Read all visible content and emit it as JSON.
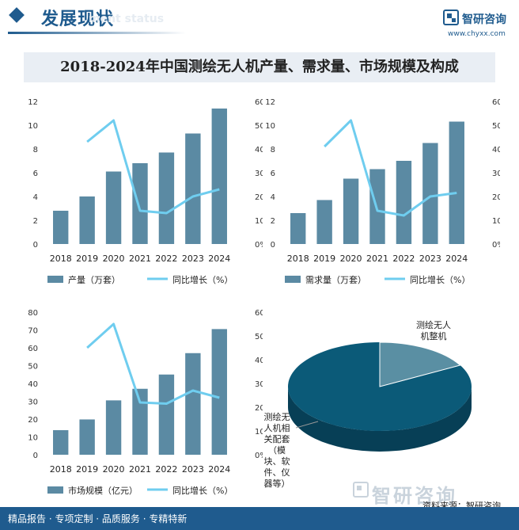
{
  "header": {
    "title": "发展现状",
    "subtitle": "ment status"
  },
  "logo": {
    "name": "智研咨询",
    "url": "www.chyxx.com"
  },
  "main_title": "2018-2024年中国测绘无人机产量、需求量、市场规模及构成",
  "watermark": "智研咨询",
  "source": "资料来源：智研咨询",
  "footer": "精品报告 · 专项定制 · 品质服务 · 专精特新",
  "colors": {
    "bar": "#5b8aa3",
    "line": "#6fcdef",
    "pie_dark": "#0b5a78",
    "pie_light": "#5a8fa3"
  },
  "chart_data": [
    {
      "type": "bar",
      "categories": [
        "2018",
        "2019",
        "2020",
        "2021",
        "2022",
        "2023",
        "2024"
      ],
      "series": [
        {
          "name": "产量（万套）",
          "type": "bar",
          "axis": "left",
          "values": [
            2.8,
            4.0,
            6.1,
            6.8,
            7.7,
            9.3,
            11.4
          ]
        },
        {
          "name": "同比增长（%）",
          "type": "line",
          "axis": "right",
          "values": [
            null,
            43,
            52,
            14,
            13,
            20,
            23
          ]
        }
      ],
      "yticks": [
        "0",
        "2",
        "4",
        "6",
        "8",
        "10",
        "12"
      ],
      "ylim": [
        0,
        12
      ],
      "y2ticks": [
        "0%",
        "10%",
        "20%",
        "30%",
        "40%",
        "50%",
        "60%"
      ],
      "y2lim": [
        0,
        60
      ]
    },
    {
      "type": "bar",
      "categories": [
        "2018",
        "2019",
        "2020",
        "2021",
        "2022",
        "2023",
        "2024"
      ],
      "series": [
        {
          "name": "需求量（万套）",
          "type": "bar",
          "axis": "left",
          "values": [
            2.6,
            3.7,
            5.5,
            6.3,
            7.0,
            8.5,
            10.3
          ]
        },
        {
          "name": "同比增长（%）",
          "type": "line",
          "axis": "right",
          "values": [
            null,
            41,
            52,
            14,
            12,
            20,
            21.5
          ]
        }
      ],
      "yticks": [
        "0",
        "2",
        "4",
        "6",
        "8",
        "10",
        "12"
      ],
      "ylim": [
        0,
        12
      ],
      "y2ticks": [
        "0%",
        "10%",
        "20%",
        "30%",
        "40%",
        "50%",
        "60%"
      ],
      "y2lim": [
        0,
        60
      ]
    },
    {
      "type": "bar",
      "categories": [
        "2018",
        "2019",
        "2020",
        "2021",
        "2022",
        "2023",
        "2024"
      ],
      "series": [
        {
          "name": "市场规模（亿元）",
          "type": "bar",
          "axis": "left",
          "values": [
            13.8,
            19.8,
            30.5,
            37.0,
            45.0,
            57.0,
            70.5
          ]
        },
        {
          "name": "同比增长（%）",
          "type": "line",
          "axis": "right",
          "values": [
            null,
            45,
            55,
            22,
            21.5,
            27,
            24
          ]
        }
      ],
      "yticks": [
        "0",
        "10",
        "20",
        "30",
        "40",
        "50",
        "60",
        "70",
        "80"
      ],
      "ylim": [
        0,
        80
      ],
      "y2ticks": [
        "0%",
        "10%",
        "20%",
        "30%",
        "40%",
        "50%",
        "60%"
      ],
      "y2lim": [
        0,
        60
      ]
    },
    {
      "type": "pie",
      "slices": [
        {
          "label": "测绘无人机整机",
          "value": 17
        },
        {
          "label": "测绘无人机相关配套（模块、软件、仪器等）",
          "value": 83
        }
      ],
      "labels_display": [
        [
          "测绘无人",
          "机整机"
        ],
        [
          "测绘无",
          "人机相",
          "关配套",
          "（模",
          "块、软",
          "件、仪",
          "器等）"
        ]
      ]
    }
  ]
}
